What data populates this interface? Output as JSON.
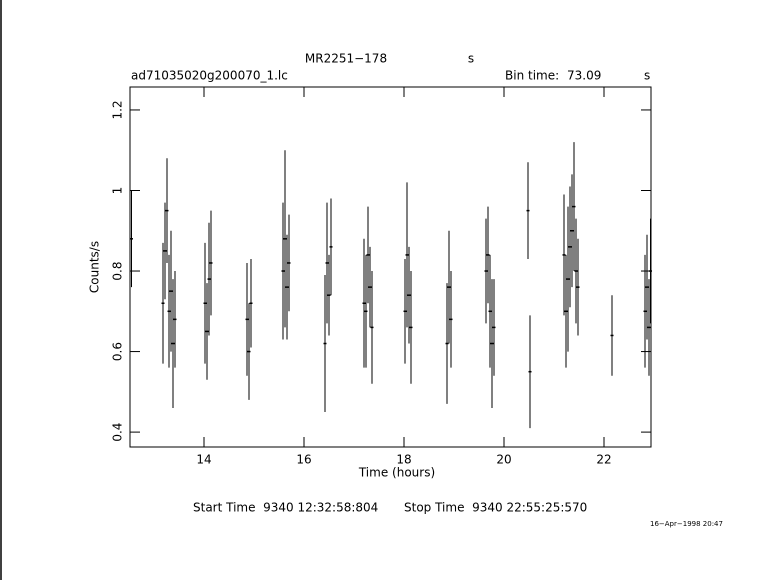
{
  "chart_data": {
    "type": "errorbar",
    "title": "MR2251−178",
    "title_unit": "s",
    "file_name": "ad71035020g200070_1.lc",
    "bin_label": "Bin time:",
    "bin_time": "73.09",
    "bin_unit": "s",
    "xlabel": "Time (hours)",
    "ylabel": "Counts/s",
    "start_time": "Start Time  9340 12:32:58:804",
    "stop_time": "Stop Time  9340 22:55:25:570",
    "date_stamp": "16−Apr−1998 20:47",
    "color": "#000000",
    "xlim": [
      12.52,
      22.94
    ],
    "xticks": [
      14,
      16,
      18,
      20,
      22
    ],
    "ylim": [
      0.363,
      1.257
    ],
    "yticks": [
      0.4,
      0.6,
      0.8,
      1,
      1.2
    ],
    "x": [
      12.55,
      13.18,
      13.22,
      13.26,
      13.3,
      13.34,
      13.38,
      13.42,
      14.02,
      14.06,
      14.1,
      14.14,
      14.86,
      14.9,
      14.94,
      15.58,
      15.62,
      15.66,
      15.7,
      16.42,
      16.46,
      16.5,
      16.54,
      17.2,
      17.24,
      17.28,
      17.32,
      17.36,
      18.02,
      18.06,
      18.1,
      18.14,
      18.86,
      18.9,
      18.94,
      19.64,
      19.68,
      19.72,
      19.76,
      19.8,
      20.48,
      20.52,
      21.2,
      21.24,
      21.28,
      21.32,
      21.36,
      21.4,
      21.44,
      21.48,
      22.16,
      22.82,
      22.86,
      22.9,
      22.93
    ],
    "values": [
      0.88,
      0.72,
      0.85,
      0.95,
      0.7,
      0.75,
      0.62,
      0.68,
      0.72,
      0.65,
      0.78,
      0.82,
      0.68,
      0.6,
      0.72,
      0.8,
      0.88,
      0.76,
      0.82,
      0.62,
      0.82,
      0.74,
      0.86,
      0.72,
      0.7,
      0.84,
      0.76,
      0.66,
      0.7,
      0.84,
      0.74,
      0.66,
      0.62,
      0.76,
      0.68,
      0.8,
      0.84,
      0.7,
      0.62,
      0.66,
      0.95,
      0.55,
      0.84,
      0.7,
      0.78,
      0.86,
      0.9,
      0.96,
      0.8,
      0.76,
      0.64,
      0.7,
      0.76,
      0.66,
      0.8
    ],
    "errors": [
      0.12,
      0.15,
      0.12,
      0.13,
      0.14,
      0.15,
      0.16,
      0.12,
      0.15,
      0.12,
      0.14,
      0.13,
      0.14,
      0.12,
      0.11,
      0.17,
      0.22,
      0.13,
      0.12,
      0.17,
      0.15,
      0.1,
      0.12,
      0.16,
      0.14,
      0.12,
      0.1,
      0.14,
      0.13,
      0.18,
      0.12,
      0.14,
      0.15,
      0.14,
      0.12,
      0.13,
      0.12,
      0.14,
      0.16,
      0.12,
      0.12,
      0.14,
      0.15,
      0.14,
      0.18,
      0.15,
      0.14,
      0.16,
      0.13,
      0.12,
      0.1,
      0.14,
      0.13,
      0.12,
      0.13
    ]
  }
}
